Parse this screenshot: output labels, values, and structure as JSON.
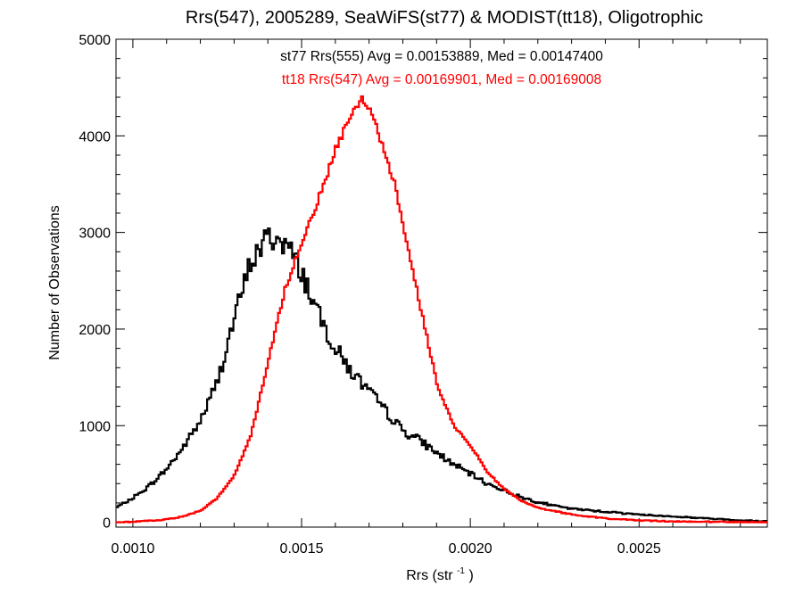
{
  "chart_data": {
    "type": "histogram",
    "title": "Rrs(547), 2005289, SeaWiFS(st77) & MODIST(tt18), Oligotrophic",
    "xlabel": "Rrs (str",
    "xlabel_superscript": "-1",
    "xlabel_suffix": ")",
    "ylabel": "Number of Observations",
    "xlim": [
      0.00095,
      0.00288
    ],
    "ylim": [
      -50,
      5000
    ],
    "xticks": [
      0.001,
      0.0015,
      0.002,
      0.0025
    ],
    "xtick_labels": [
      "0.0010",
      "0.0015",
      "0.0020",
      "0.0025"
    ],
    "yticks": [
      0,
      1000,
      2000,
      3000,
      4000,
      5000
    ],
    "ytick_labels": [
      "0",
      "1000",
      "2000",
      "3000",
      "4000",
      "5000"
    ],
    "grid": false,
    "series": [
      {
        "name": "st77",
        "color": "#000000",
        "annotation": "st77 Rrs(555) Avg = 0.00153889, Med = 0.00147400",
        "x": [
          0.00095,
          0.001,
          0.00105,
          0.0011,
          0.00115,
          0.0012,
          0.00125,
          0.0013,
          0.00135,
          0.0014,
          0.00145,
          0.0015,
          0.00155,
          0.0016,
          0.00165,
          0.0017,
          0.00175,
          0.0018,
          0.00185,
          0.0019,
          0.00195,
          0.002,
          0.00205,
          0.0021,
          0.00215,
          0.0022,
          0.00225,
          0.0023,
          0.0024,
          0.0025,
          0.0026,
          0.0027,
          0.0028,
          0.00288
        ],
        "y": [
          150,
          250,
          380,
          550,
          780,
          1050,
          1450,
          2100,
          2700,
          2950,
          2900,
          2600,
          2150,
          1800,
          1550,
          1350,
          1150,
          950,
          850,
          720,
          600,
          500,
          400,
          330,
          260,
          210,
          170,
          140,
          110,
          80,
          60,
          40,
          20,
          10
        ]
      },
      {
        "name": "tt18",
        "color": "#ff0000",
        "annotation": "tt18 Rrs(547) Avg = 0.00169901, Med = 0.00169008",
        "x": [
          0.00095,
          0.001,
          0.00105,
          0.0011,
          0.00115,
          0.0012,
          0.00125,
          0.0013,
          0.00135,
          0.0014,
          0.00145,
          0.0015,
          0.00155,
          0.0016,
          0.00163,
          0.00166,
          0.00168,
          0.0017,
          0.00172,
          0.00175,
          0.00178,
          0.0018,
          0.00183,
          0.00186,
          0.0019,
          0.00195,
          0.002,
          0.00205,
          0.0021,
          0.00215,
          0.0022,
          0.0023,
          0.0024,
          0.0025,
          0.0026,
          0.00288
        ],
        "y": [
          0,
          5,
          15,
          30,
          60,
          120,
          250,
          480,
          900,
          1650,
          2400,
          2900,
          3350,
          3850,
          4100,
          4300,
          4400,
          4300,
          4100,
          3800,
          3450,
          3100,
          2600,
          2100,
          1450,
          1000,
          800,
          520,
          350,
          220,
          150,
          80,
          40,
          20,
          8,
          0
        ]
      }
    ]
  }
}
